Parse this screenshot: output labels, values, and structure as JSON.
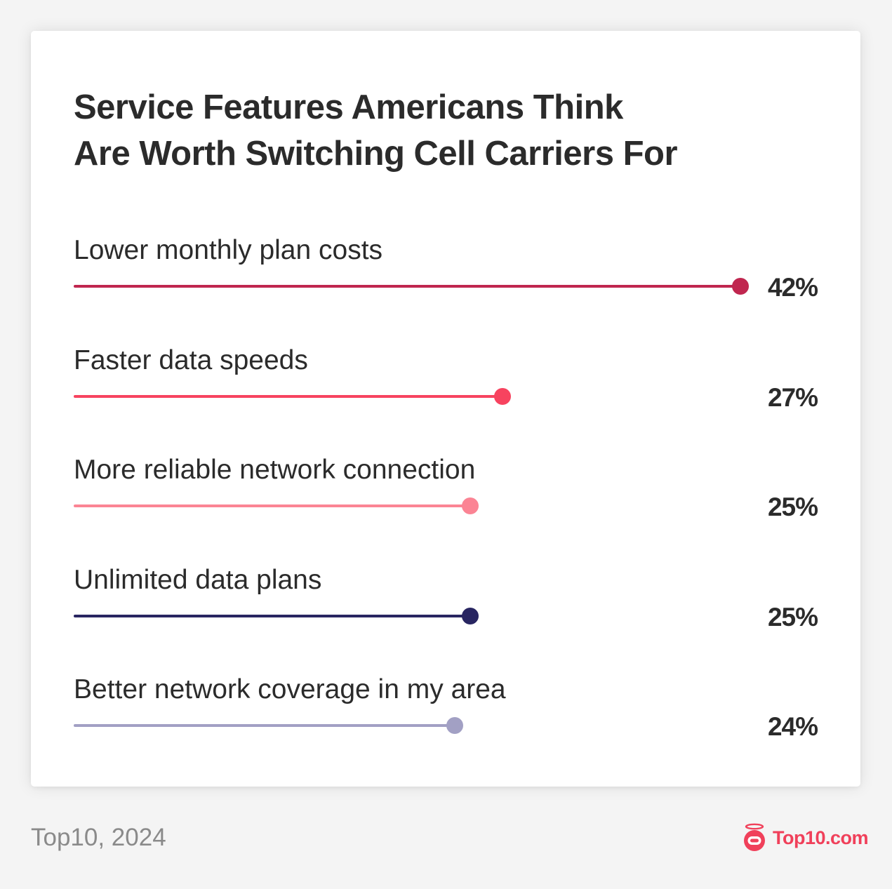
{
  "card": {
    "title_line1": "Service Features Americans Think",
    "title_line2": "Are Worth Switching Cell Carriers For"
  },
  "footer": {
    "source": "Top10, 2024",
    "brand": "Top10.com",
    "brand_icon": "robot-halo-logo-icon",
    "brand_color": "#f0405a"
  },
  "chart_data": {
    "type": "bar",
    "orientation": "horizontal",
    "style": "lollipop",
    "title": "Service Features Americans Think Are Worth Switching Cell Carriers For",
    "xlabel": "",
    "ylabel": "",
    "unit": "%",
    "categories": [
      "Lower monthly plan costs",
      "Faster data speeds",
      "More reliable network connection",
      "Unlimited data plans",
      "Better network coverage in my area"
    ],
    "values": [
      42,
      27,
      25,
      25,
      24
    ],
    "value_labels": [
      "42%",
      "27%",
      "25%",
      "25%",
      "24%"
    ],
    "colors": [
      "#c0264f",
      "#f7435f",
      "#fb8494",
      "#282561",
      "#a2a0c4"
    ],
    "xlim": [
      0,
      42
    ],
    "grid": false,
    "legend": null,
    "source": "Top10, 2024"
  }
}
